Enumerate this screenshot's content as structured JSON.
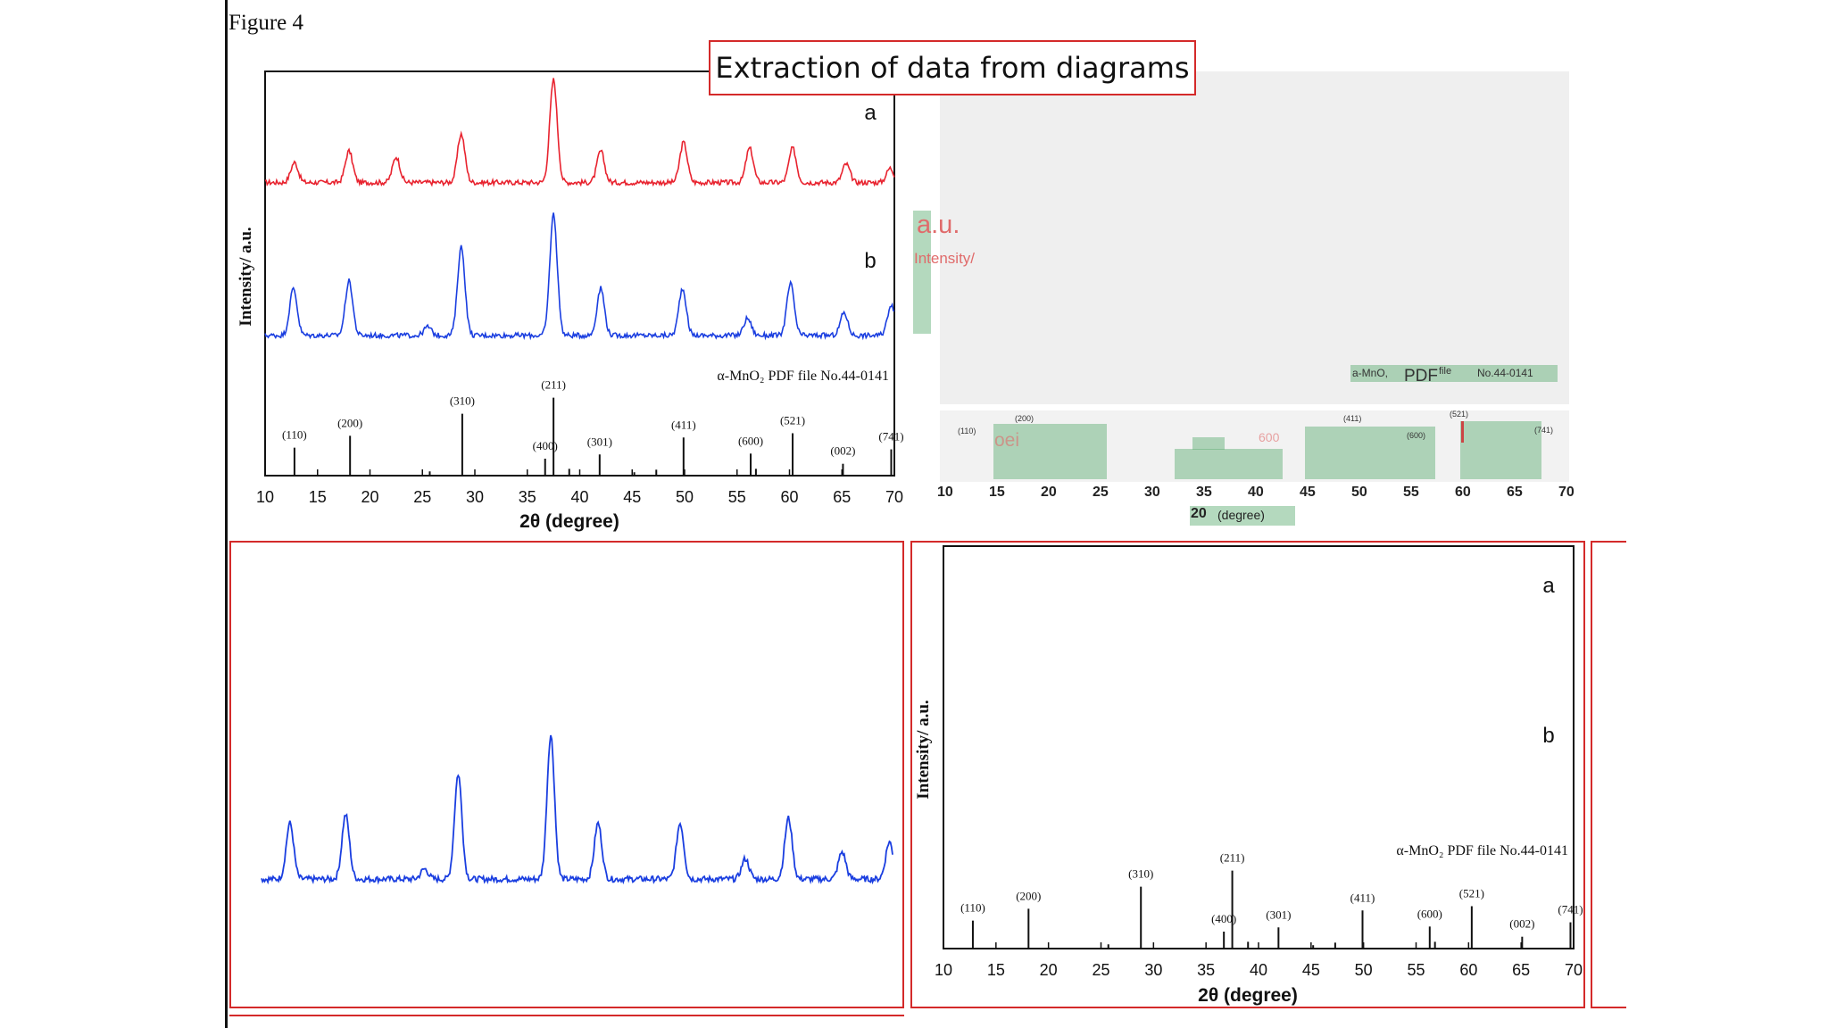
{
  "figure_label": "Figure 4",
  "slide_title": "Extraction of data from diagrams",
  "chart_data": [
    {
      "type": "line",
      "title": "",
      "xlabel": "2θ (degree)",
      "ylabel": "Intensity/ a.u.",
      "xlim": [
        10,
        70
      ],
      "xticks": [
        10,
        15,
        20,
        25,
        30,
        35,
        40,
        45,
        50,
        55,
        60,
        65,
        70
      ],
      "grid": false,
      "series": [
        {
          "name": "a",
          "color": "#e8232f",
          "baseline": 0.82,
          "peaks": [
            [
              12.8,
              0.14
            ],
            [
              18.0,
              0.22
            ],
            [
              22.5,
              0.18
            ],
            [
              28.7,
              0.34
            ],
            [
              37.5,
              0.72
            ],
            [
              42.0,
              0.22
            ],
            [
              49.9,
              0.28
            ],
            [
              56.2,
              0.24
            ],
            [
              60.3,
              0.24
            ],
            [
              65.4,
              0.13
            ],
            [
              69.6,
              0.1
            ]
          ]
        },
        {
          "name": "b",
          "color": "#1a3ee0",
          "baseline": 0.32,
          "peaks": [
            [
              12.7,
              0.33
            ],
            [
              18.0,
              0.38
            ],
            [
              25.5,
              0.06
            ],
            [
              28.7,
              0.62
            ],
            [
              37.5,
              0.85
            ],
            [
              42.0,
              0.33
            ],
            [
              49.8,
              0.33
            ],
            [
              56.0,
              0.12
            ],
            [
              60.1,
              0.36
            ],
            [
              65.2,
              0.16
            ],
            [
              69.7,
              0.22
            ]
          ]
        }
      ],
      "reference": {
        "label": "α-MnO₂ PDF file No.44-0141",
        "sticks": [
          {
            "x": 12.8,
            "h": 0.33,
            "label": "(110)"
          },
          {
            "x": 18.1,
            "h": 0.47,
            "label": "(200)"
          },
          {
            "x": 28.8,
            "h": 0.73,
            "label": "(310)"
          },
          {
            "x": 36.7,
            "h": 0.2,
            "label": "(400)"
          },
          {
            "x": 37.5,
            "h": 0.92,
            "label": "(211)"
          },
          {
            "x": 41.9,
            "h": 0.25,
            "label": "(301)"
          },
          {
            "x": 49.9,
            "h": 0.45,
            "label": "(411)"
          },
          {
            "x": 56.3,
            "h": 0.26,
            "label": "(600)"
          },
          {
            "x": 60.3,
            "h": 0.5,
            "label": "(521)"
          },
          {
            "x": 65.1,
            "h": 0.14,
            "label": "(002)"
          },
          {
            "x": 69.7,
            "h": 0.31,
            "label": "(741)"
          },
          {
            "x": 25.7,
            "h": 0.05,
            "label": ""
          },
          {
            "x": 39.0,
            "h": 0.08,
            "label": ""
          },
          {
            "x": 45.2,
            "h": 0.04,
            "label": ""
          },
          {
            "x": 47.3,
            "h": 0.07,
            "label": ""
          },
          {
            "x": 56.8,
            "h": 0.08,
            "label": ""
          }
        ]
      }
    },
    {
      "type": "line",
      "title": "",
      "xlabel": "",
      "ylabel": "",
      "series": [
        {
          "name": "",
          "color": "#1a3ee0",
          "baseline": 0.32,
          "peaks": [
            [
              12.7,
              0.33
            ],
            [
              18.0,
              0.38
            ],
            [
              25.5,
              0.06
            ],
            [
              28.7,
              0.62
            ],
            [
              37.5,
              0.85
            ],
            [
              42.0,
              0.33
            ],
            [
              49.8,
              0.33
            ],
            [
              56.0,
              0.12
            ],
            [
              60.1,
              0.36
            ],
            [
              65.2,
              0.16
            ],
            [
              69.7,
              0.22
            ]
          ]
        }
      ]
    },
    {
      "type": "bar",
      "title": "",
      "xlabel": "2θ (degree)",
      "ylabel": "Intensity/ a.u.",
      "xlim": [
        10,
        70
      ],
      "xticks": [
        10,
        15,
        20,
        25,
        30,
        35,
        40,
        45,
        50,
        55,
        60,
        65,
        70
      ],
      "series_labels": [
        "a",
        "b"
      ],
      "reference_label": "α-MnO₂ PDF file No.44-0141"
    }
  ],
  "ocr_overlay": {
    "ylabel_ocr_top": "a.u.",
    "ylabel_ocr_bottom": "Intensity/",
    "ref_part1": "a-MnO,",
    "ref_part2": "PDF",
    "ref_part3": "file",
    "ref_part4": "No.44-0141",
    "pk_110": "(110)",
    "pk_200": "(200)",
    "pk_411": "(411)",
    "pk_521": "(521)",
    "pk_600": "(600)",
    "pk_741": "(741)",
    "ghost_a": "oei",
    "ghost_b": "600",
    "xticks": [
      "10",
      "15",
      "20",
      "25",
      "30",
      "35",
      "40",
      "45",
      "50",
      "55",
      "60",
      "65",
      "70"
    ],
    "xlabel_a": "20",
    "xlabel_b": "(degree)"
  }
}
